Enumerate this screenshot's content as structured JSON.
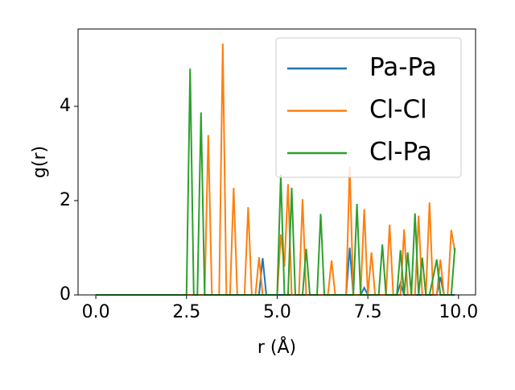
{
  "chart_data": {
    "type": "line",
    "xlabel": "r (Å)",
    "ylabel": "g(r)",
    "x": [
      0,
      0.1,
      0.2,
      0.3,
      0.4,
      0.5,
      0.6,
      0.7,
      0.8,
      0.9,
      1,
      1.1,
      1.2,
      1.3,
      1.4,
      1.5,
      1.6,
      1.7,
      1.8,
      1.9,
      2,
      2.1,
      2.2,
      2.3,
      2.4,
      2.5,
      2.6,
      2.7,
      2.8,
      2.9,
      3,
      3.1,
      3.2,
      3.3,
      3.4,
      3.5,
      3.6,
      3.7,
      3.8,
      3.9,
      4,
      4.1,
      4.2,
      4.3,
      4.4,
      4.5,
      4.6,
      4.7,
      4.8,
      4.9,
      5,
      5.1,
      5.2,
      5.3,
      5.4,
      5.5,
      5.6,
      5.7,
      5.8,
      5.9,
      6,
      6.1,
      6.2,
      6.3,
      6.4,
      6.5,
      6.6,
      6.7,
      6.8,
      6.9,
      7,
      7.1,
      7.2,
      7.3,
      7.4,
      7.5,
      7.6,
      7.7,
      7.8,
      7.9,
      8,
      8.1,
      8.2,
      8.3,
      8.4,
      8.5,
      8.6,
      8.7,
      8.8,
      8.9,
      9,
      9.1,
      9.2,
      9.3,
      9.4,
      9.5,
      9.6,
      9.7,
      9.8,
      9.9
    ],
    "series": [
      {
        "name": "Pa-Pa",
        "color": "#1f77b4",
        "values": [
          0,
          0,
          0,
          0,
          0,
          0,
          0,
          0,
          0,
          0,
          0,
          0,
          0,
          0,
          0,
          0,
          0,
          0,
          0,
          0,
          0,
          0,
          0,
          0,
          0,
          0,
          0,
          0,
          0,
          0,
          0,
          0,
          0,
          0,
          0,
          0,
          0,
          0,
          0,
          0,
          0,
          0,
          0,
          0,
          0,
          0,
          0.78,
          0,
          0,
          0,
          0,
          0,
          0,
          0,
          0,
          0,
          0,
          0,
          0,
          0,
          0,
          0,
          0,
          0,
          0,
          0,
          0,
          0,
          0,
          0,
          1.0,
          0,
          0,
          0,
          0.15,
          0,
          0,
          0,
          0,
          0,
          0,
          0,
          0,
          0,
          0.25,
          0,
          0,
          0,
          0,
          0,
          0,
          0,
          0,
          0,
          0,
          0.38,
          0,
          0,
          0,
          0
        ]
      },
      {
        "name": "Cl-Cl",
        "color": "#ff7f0e",
        "values": [
          0,
          0,
          0,
          0,
          0,
          0,
          0,
          0,
          0,
          0,
          0,
          0,
          0,
          0,
          0,
          0,
          0,
          0,
          0,
          0,
          0,
          0,
          0,
          0,
          0,
          0,
          0,
          0,
          0,
          0,
          0,
          3.39,
          0,
          0,
          0,
          5.33,
          0,
          0,
          2.27,
          0,
          0,
          0,
          1.86,
          0,
          0,
          0.8,
          0,
          0,
          0,
          0,
          0,
          1.28,
          0.6,
          2.35,
          0,
          0,
          0,
          2.03,
          0,
          0,
          0,
          0,
          0,
          0,
          0,
          0.73,
          0,
          0,
          0,
          0,
          2.72,
          0,
          0,
          0,
          1.82,
          0,
          0.9,
          0,
          0,
          0,
          0,
          1.49,
          0,
          0,
          0,
          1.39,
          0,
          0,
          0,
          1.68,
          0,
          0,
          1.96,
          0,
          0,
          0.75,
          0,
          0,
          1.38,
          0.9
        ]
      },
      {
        "name": "Cl-Pa",
        "color": "#2ca02c",
        "values": [
          0,
          0,
          0,
          0,
          0,
          0,
          0,
          0,
          0,
          0,
          0,
          0,
          0,
          0,
          0,
          0,
          0,
          0,
          0,
          0,
          0,
          0,
          0,
          0,
          0,
          0,
          4.8,
          0,
          0,
          3.87,
          0,
          0,
          0,
          0,
          0,
          0,
          0,
          0,
          0,
          0,
          0,
          0,
          0,
          0,
          0,
          0,
          0,
          0,
          0,
          0,
          0,
          2.55,
          0,
          0,
          2.27,
          0,
          0,
          0,
          0.98,
          0,
          0,
          0,
          1.72,
          0,
          0,
          0,
          0,
          0,
          0,
          0,
          0,
          0,
          1.93,
          0,
          0,
          0,
          0,
          0,
          0,
          1.07,
          0,
          0,
          0,
          0,
          0.95,
          0,
          0.9,
          0,
          1.73,
          0,
          0.79,
          0,
          0,
          0.37,
          0.75,
          0,
          0,
          0,
          0,
          1.0
        ]
      }
    ],
    "xlim": [
      -0.49,
      10.47
    ],
    "xticks": [
      {
        "value": 0,
        "label": "0.0"
      },
      2.5,
      {
        "value": 5,
        "label": "5.0"
      },
      7.5,
      {
        "value": 10,
        "label": "10.0"
      }
    ],
    "ylim": [
      0,
      5.64
    ],
    "yticks": [
      0,
      2,
      4
    ],
    "legend": "upper right",
    "grid": false
  }
}
